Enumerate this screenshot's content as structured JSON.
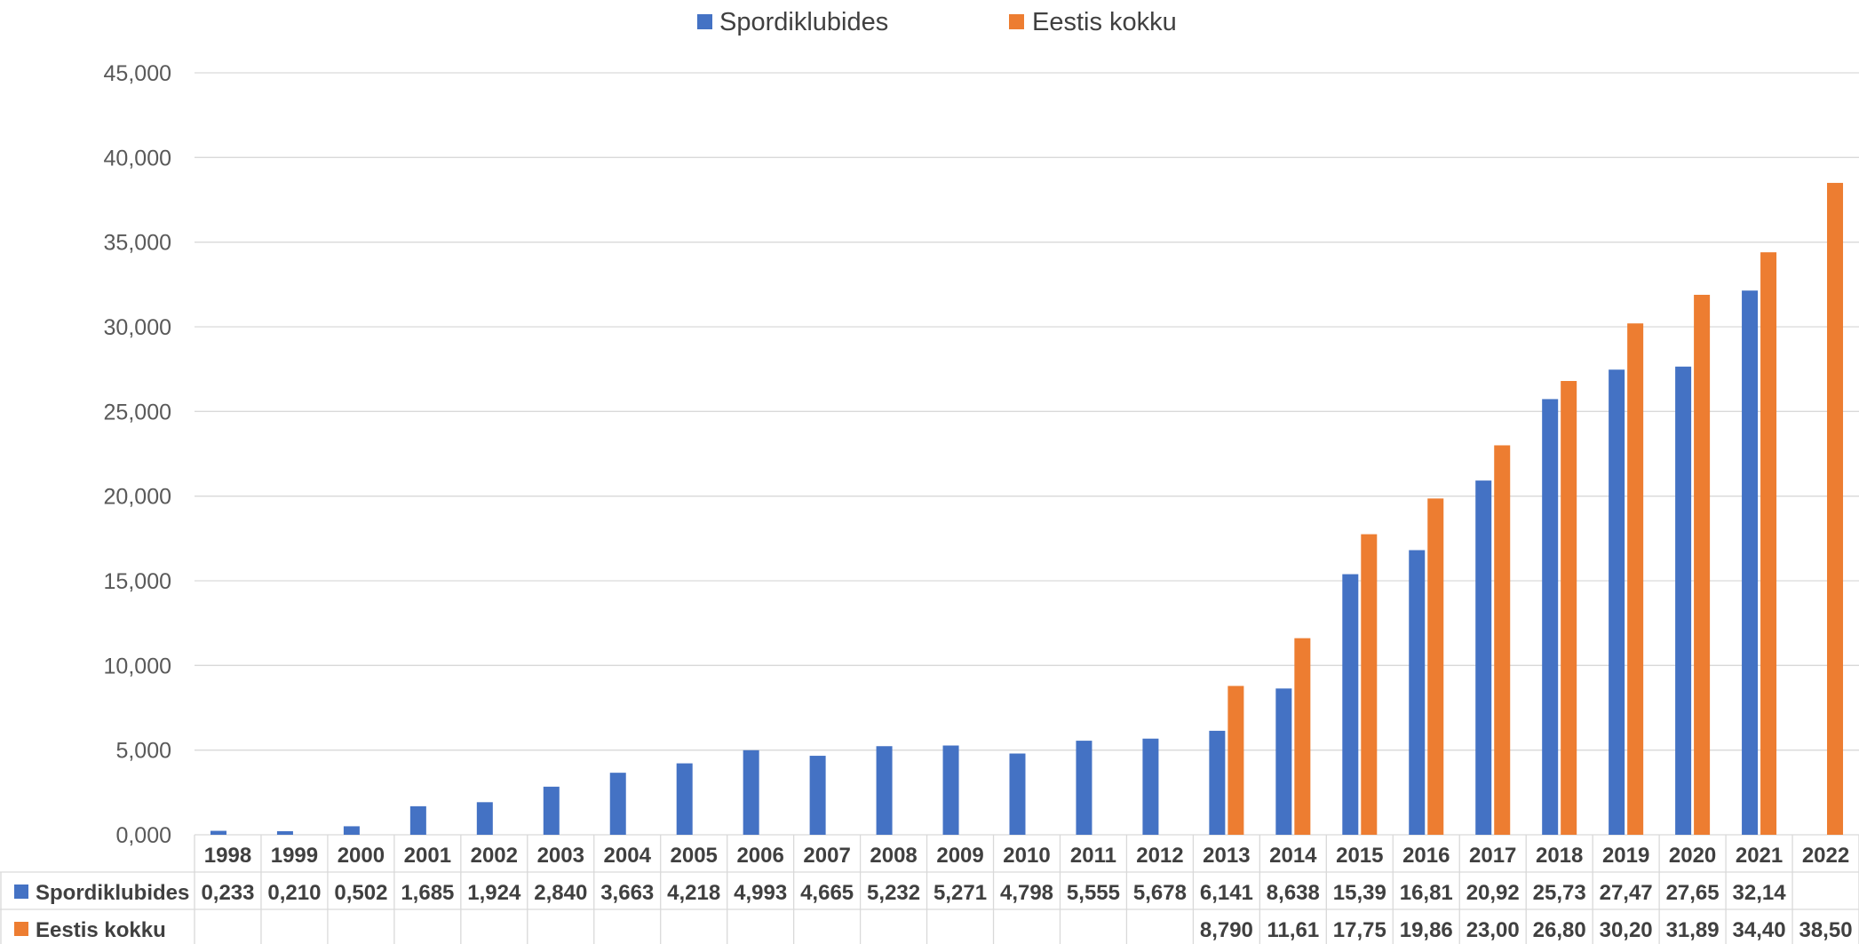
{
  "chart_data": {
    "type": "bar",
    "categories": [
      "1998",
      "1999",
      "2000",
      "2001",
      "2002",
      "2003",
      "2004",
      "2005",
      "2006",
      "2007",
      "2008",
      "2009",
      "2010",
      "2011",
      "2012",
      "2013",
      "2014",
      "2015",
      "2016",
      "2017",
      "2018",
      "2019",
      "2020",
      "2021",
      "2022"
    ],
    "series": [
      {
        "name": "Spordiklubides",
        "color": "#4472C4",
        "values": [
          0.233,
          0.21,
          0.502,
          1.685,
          1.924,
          2.84,
          3.663,
          4.218,
          4.993,
          4.665,
          5.232,
          5.271,
          4.798,
          5.555,
          5.678,
          6.141,
          8.638,
          15.39,
          16.81,
          20.92,
          25.73,
          27.47,
          27.65,
          32.14,
          null
        ],
        "labels": [
          "0,233",
          "0,210",
          "0,502",
          "1,685",
          "1,924",
          "2,840",
          "3,663",
          "4,218",
          "4,993",
          "4,665",
          "5,232",
          "5,271",
          "4,798",
          "5,555",
          "5,678",
          "6,141",
          "8,638",
          "15,39",
          "16,81",
          "20,92",
          "25,73",
          "27,47",
          "27,65",
          "32,14",
          ""
        ]
      },
      {
        "name": "Eestis kokku",
        "color": "#ED7D31",
        "values": [
          null,
          null,
          null,
          null,
          null,
          null,
          null,
          null,
          null,
          null,
          null,
          null,
          null,
          null,
          null,
          8.79,
          11.61,
          17.75,
          19.86,
          23.0,
          26.8,
          30.2,
          31.89,
          34.4,
          38.5
        ],
        "labels": [
          "",
          "",
          "",
          "",
          "",
          "",
          "",
          "",
          "",
          "",
          "",
          "",
          "",
          "",
          "",
          "8,790",
          "11,61",
          "17,75",
          "19,86",
          "23,00",
          "26,80",
          "30,20",
          "31,89",
          "34,40",
          "38,50"
        ]
      }
    ],
    "ylim": [
      0,
      45
    ],
    "yticks": [
      "0,000",
      "5,000",
      "10,000",
      "15,000",
      "20,000",
      "25,000",
      "30,000",
      "35,000",
      "40,000",
      "45,000"
    ],
    "grid": true,
    "legend": "top-center",
    "data_table": true
  }
}
